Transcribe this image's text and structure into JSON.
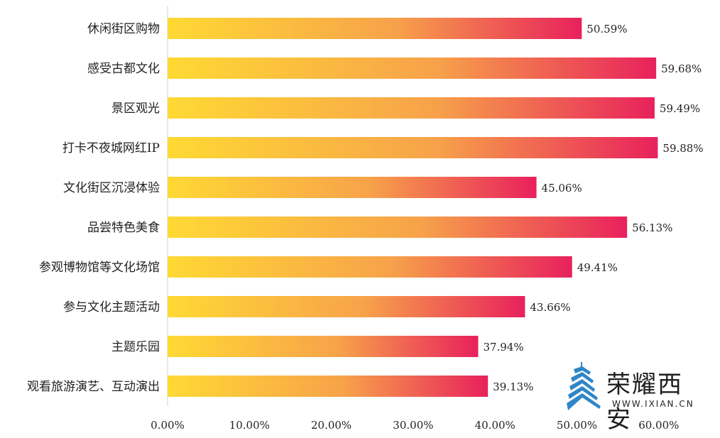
{
  "chart_data": {
    "type": "bar",
    "orientation": "horizontal",
    "title": "",
    "xlabel": "",
    "ylabel": "",
    "categories": [
      "休闲街区购物",
      "感受古都文化",
      "景区观光",
      "打卡不夜城网红IP",
      "文化街区沉浸体验",
      "品尝特色美食",
      "参观博物馆等文化场馆",
      "参与文化主题活动",
      "主题乐园",
      "观看旅游演艺、互动演出"
    ],
    "values": [
      50.59,
      59.68,
      59.49,
      59.88,
      45.06,
      56.13,
      49.41,
      43.66,
      37.94,
      39.13
    ],
    "value_labels": [
      "50.59%",
      "59.68%",
      "59.49%",
      "59.88%",
      "45.06%",
      "56.13%",
      "49.41%",
      "43.66%",
      "37.94%",
      "39.13%"
    ],
    "xlim": [
      0,
      60
    ],
    "xticks": [
      0,
      10,
      20,
      30,
      40,
      50,
      60
    ],
    "xtick_labels": [
      "0.00%",
      "10.00%",
      "20.00%",
      "30.00%",
      "40.00%",
      "50.00%",
      "60.00%"
    ],
    "grid": false,
    "colors": {
      "gradient_start": "#FFD934",
      "gradient_mid": "#F7A24A",
      "gradient_end": "#E8215C",
      "axis": "#d0d0d0"
    }
  },
  "logo": {
    "title": "荣耀西安",
    "url": "WWW.IXIAN.CN",
    "color": "#2F86C8"
  }
}
